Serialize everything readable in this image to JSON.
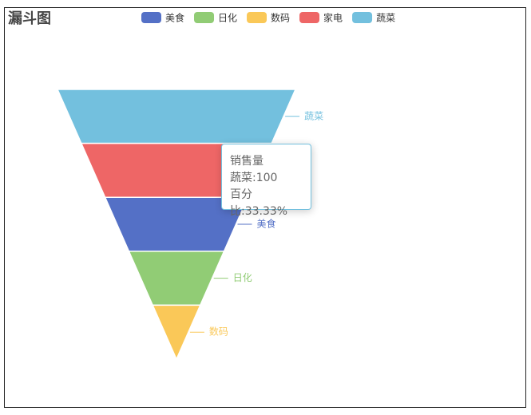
{
  "chart_data": {
    "type": "funnel",
    "title": "漏斗图",
    "legend": [
      "美食",
      "日化",
      "数码",
      "家电",
      "蔬菜"
    ],
    "categories": [
      "蔬菜",
      "家电",
      "美食",
      "日化",
      "数码"
    ],
    "values": [
      100,
      80,
      60,
      40,
      20
    ],
    "colors": [
      "#73c0de",
      "#ee6666",
      "#5470c6",
      "#91cc75",
      "#fac858"
    ],
    "tooltip": {
      "series_name": "销售量",
      "lines": [
        "蔬菜:100",
        "百分比:33.33%"
      ]
    }
  }
}
